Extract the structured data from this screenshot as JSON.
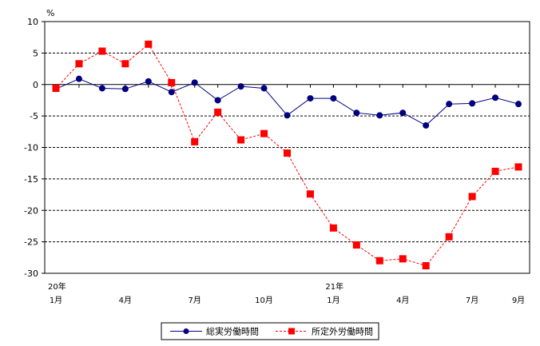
{
  "chart_data": {
    "type": "line",
    "ylabel": "%",
    "ylim": [
      -30,
      10
    ],
    "y_ticks": [
      "10",
      "5",
      "0",
      "-5",
      "-10",
      "-15",
      "-20",
      "-25",
      "-30"
    ],
    "grid": "horizontal dashed",
    "legend_position": "bottom-center",
    "x_tick_labels": [
      {
        "index": 0,
        "label": "1月",
        "year": "20年"
      },
      {
        "index": 3,
        "label": "4月"
      },
      {
        "index": 6,
        "label": "7月"
      },
      {
        "index": 9,
        "label": "10月"
      },
      {
        "index": 12,
        "label": "1月",
        "year": "21年"
      },
      {
        "index": 15,
        "label": "4月"
      },
      {
        "index": 18,
        "label": "7月"
      },
      {
        "index": 20,
        "label": "9月"
      }
    ],
    "x": [
      "20年1月",
      "2月",
      "3月",
      "4月",
      "5月",
      "6月",
      "7月",
      "8月",
      "9月",
      "10月",
      "11月",
      "12月",
      "21年1月",
      "2月",
      "3月",
      "4月",
      "5月",
      "6月",
      "7月",
      "8月",
      "9月"
    ],
    "series": [
      {
        "name": "総実労働時間",
        "color": "#000080",
        "marker": "circle",
        "line": "solid",
        "values": [
          -0.7,
          0.9,
          -0.6,
          -0.7,
          0.5,
          -1.2,
          0.3,
          -2.5,
          -0.3,
          -0.6,
          -4.9,
          -2.2,
          -2.2,
          -4.5,
          -4.9,
          -4.5,
          -6.5,
          -3.1,
          -3.0,
          -2.1,
          -3.1
        ]
      },
      {
        "name": "所定外労働時間",
        "color": "#ff0000",
        "marker": "square",
        "line": "dashed",
        "values": [
          -0.6,
          3.3,
          5.3,
          3.3,
          6.4,
          0.3,
          -9.1,
          -4.4,
          -8.8,
          -7.8,
          -10.9,
          -17.4,
          -22.8,
          -25.5,
          -28.0,
          -27.7,
          -28.8,
          -24.2,
          -17.8,
          -13.8,
          -13.1
        ]
      }
    ]
  }
}
